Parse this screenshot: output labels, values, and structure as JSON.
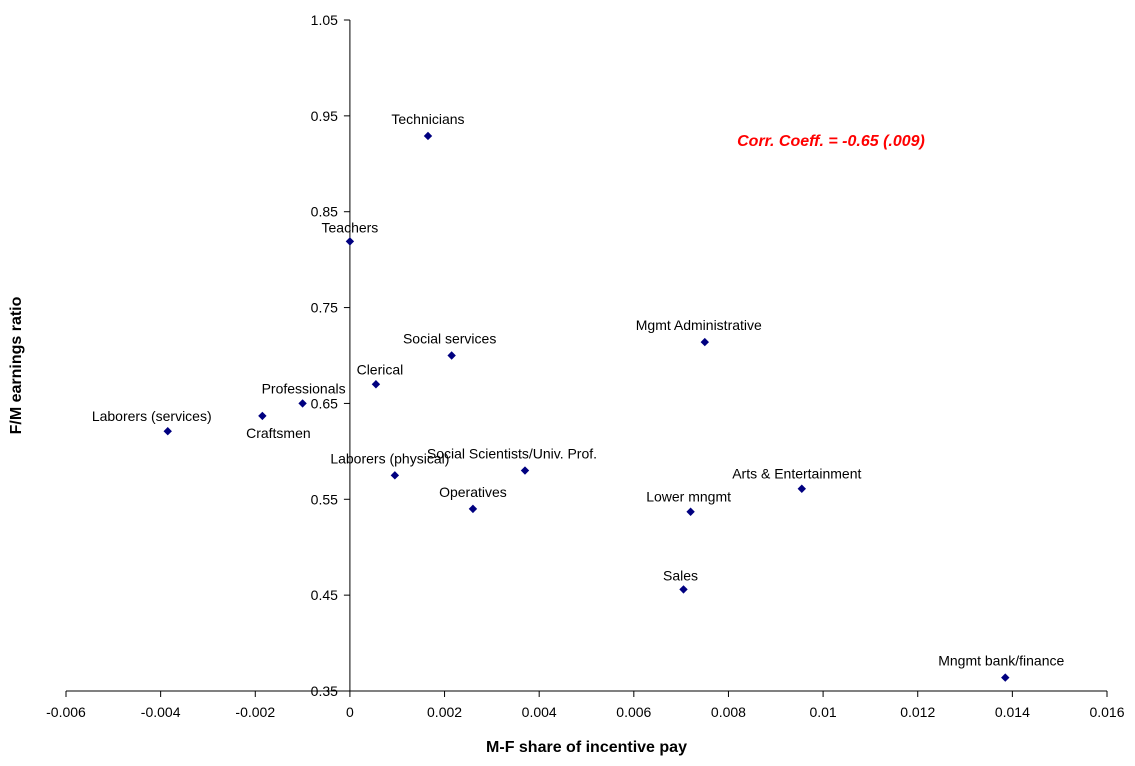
{
  "chart_data": {
    "type": "scatter",
    "xlabel": "M-F share of incentive pay",
    "ylabel": "F/M earnings ratio",
    "xlim": [
      -0.006,
      0.016
    ],
    "ylim": [
      0.35,
      1.05
    ],
    "x_ticks": [
      -0.006,
      -0.004,
      -0.002,
      0,
      0.002,
      0.004,
      0.006,
      0.008,
      0.01,
      0.012,
      0.014,
      0.016
    ],
    "x_tick_labels": [
      "-0.006",
      "-0.004",
      "-0.002",
      "0",
      "0.002",
      "0.004",
      "0.006",
      "0.008",
      "0.01",
      "0.012",
      "0.014",
      "0.016"
    ],
    "y_ticks": [
      0.35,
      0.45,
      0.55,
      0.65,
      0.75,
      0.85,
      0.95,
      1.05
    ],
    "y_tick_labels": [
      "0.35",
      "0.45",
      "0.55",
      "0.65",
      "0.75",
      "0.85",
      "0.95",
      "1.05"
    ],
    "grid": false,
    "marker_color": "#000080",
    "annotation": {
      "text": "Corr. Coeff. = -0.65 (.009)",
      "color": "#ff0000"
    },
    "points": [
      {
        "label": "Technicians",
        "x": 0.00165,
        "y": 0.929
      },
      {
        "label": "Teachers",
        "x": 0.0,
        "y": 0.819
      },
      {
        "label": "Social services",
        "x": 0.00215,
        "y": 0.7
      },
      {
        "label": "Mgmt Administrative",
        "x": 0.0075,
        "y": 0.714
      },
      {
        "label": "Clerical",
        "x": 0.00055,
        "y": 0.67
      },
      {
        "label": "Professionals",
        "x": -0.001,
        "y": 0.65
      },
      {
        "label": "Craftsmen",
        "x": -0.00185,
        "y": 0.637
      },
      {
        "label": "Laborers (services)",
        "x": -0.00385,
        "y": 0.621
      },
      {
        "label": "Laborers (physical)",
        "x": 0.00095,
        "y": 0.575
      },
      {
        "label": "Social Scientists/Univ. Prof.",
        "x": 0.0037,
        "y": 0.58
      },
      {
        "label": "Operatives",
        "x": 0.0026,
        "y": 0.54
      },
      {
        "label": "Lower mngmt",
        "x": 0.0072,
        "y": 0.537
      },
      {
        "label": "Arts & Entertainment",
        "x": 0.00955,
        "y": 0.561
      },
      {
        "label": "Sales",
        "x": 0.00705,
        "y": 0.456
      },
      {
        "label": "Mngmt bank/finance",
        "x": 0.01385,
        "y": 0.364
      }
    ]
  }
}
